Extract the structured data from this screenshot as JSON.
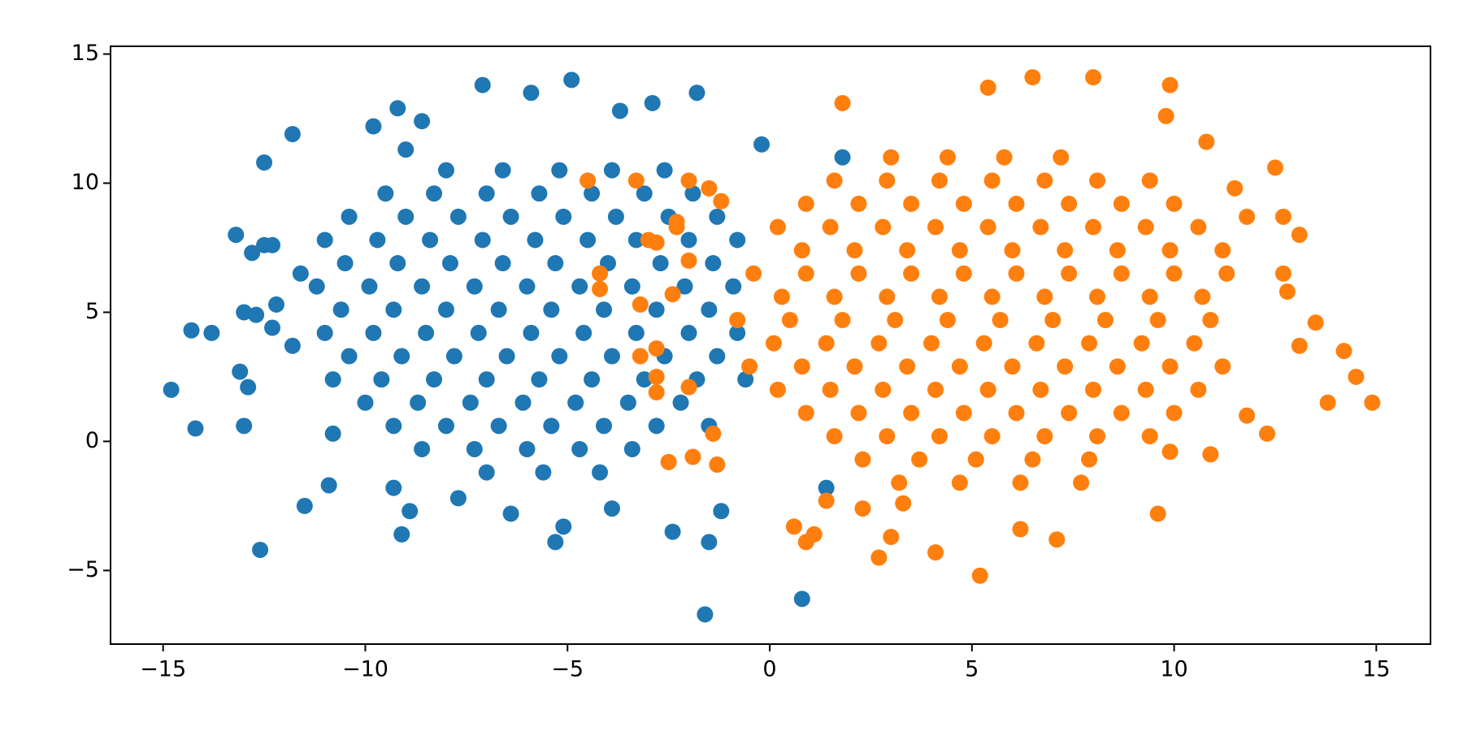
{
  "chart_data": {
    "type": "scatter",
    "xlim": [
      -16.3,
      16.34
    ],
    "ylim": [
      -7.85,
      15.3
    ],
    "xticks": [
      {
        "value": -15,
        "label": "−15"
      },
      {
        "value": -10,
        "label": "−10"
      },
      {
        "value": -5,
        "label": "−5"
      },
      0,
      5,
      10,
      15
    ],
    "yticks": [
      {
        "value": -5,
        "label": "−5"
      },
      0,
      5,
      10,
      15
    ],
    "series": [
      {
        "color": "#1f77b4",
        "x": [
          -14.8,
          -14.2,
          -14.3,
          -13.8,
          -13.2,
          -13.0,
          -12.7,
          -12.8,
          -12.5,
          -12.3,
          -13.1,
          -12.9,
          -13.0,
          -12.6,
          -11.5,
          -10.9,
          -12.5,
          -11.8,
          -12.2,
          -12.3,
          -11.8,
          -11.6,
          -10.8,
          -9.8,
          -9.2,
          -9.0,
          -8.6,
          -7.1,
          -5.9,
          -4.9,
          -3.7,
          -2.9,
          -1.8,
          -9.3,
          -9.1,
          -8.9,
          -7.7,
          -6.4,
          -5.3,
          -5.1,
          -3.9,
          -2.4,
          -1.5,
          -1.2,
          -1.6,
          0.8,
          1.4,
          -0.2,
          1.8,
          -8.0,
          -6.6,
          -5.2,
          -3.9,
          -2.6,
          -9.5,
          -8.3,
          -7.0,
          -5.7,
          -4.4,
          -3.1,
          -1.9,
          -10.4,
          -9.0,
          -7.7,
          -6.4,
          -5.1,
          -3.8,
          -2.5,
          -1.3,
          -11.0,
          -9.7,
          -8.4,
          -7.1,
          -5.8,
          -4.5,
          -3.3,
          -2.0,
          -0.8,
          -10.5,
          -9.2,
          -7.9,
          -6.6,
          -5.3,
          -4.0,
          -2.7,
          -1.4,
          -11.2,
          -9.9,
          -8.6,
          -7.3,
          -6.0,
          -4.7,
          -3.4,
          -2.1,
          -0.9,
          -10.6,
          -9.3,
          -8.0,
          -6.7,
          -5.4,
          -4.1,
          -2.8,
          -1.5,
          -11.0,
          -9.8,
          -8.5,
          -7.2,
          -5.9,
          -4.6,
          -3.3,
          -2.0,
          -0.8,
          -10.4,
          -9.1,
          -7.8,
          -6.5,
          -5.2,
          -3.9,
          -2.6,
          -1.3,
          -10.8,
          -9.6,
          -8.3,
          -7.0,
          -5.7,
          -4.4,
          -3.1,
          -1.8,
          -0.6,
          -10.0,
          -8.7,
          -7.4,
          -6.1,
          -4.8,
          -3.5,
          -2.2,
          -9.3,
          -8.0,
          -6.7,
          -5.4,
          -4.1,
          -2.8,
          -1.5,
          -8.6,
          -7.3,
          -6.0,
          -4.7,
          -3.4,
          -7.0,
          -5.6,
          -4.2
        ],
        "values": [
          2.0,
          0.5,
          4.3,
          4.2,
          8.0,
          5.0,
          4.9,
          7.3,
          7.6,
          7.6,
          2.7,
          2.1,
          0.6,
          -4.2,
          -2.5,
          -1.7,
          10.8,
          11.9,
          5.3,
          4.4,
          3.7,
          6.5,
          0.3,
          12.2,
          12.9,
          11.3,
          12.4,
          13.8,
          13.5,
          14.0,
          12.8,
          13.1,
          13.5,
          -1.8,
          -3.6,
          -2.7,
          -2.2,
          -2.8,
          -3.9,
          -3.3,
          -2.6,
          -3.5,
          -3.9,
          -2.7,
          -6.7,
          -6.1,
          -1.8,
          11.5,
          11.0,
          10.5,
          10.5,
          10.5,
          10.5,
          10.5,
          9.6,
          9.6,
          9.6,
          9.6,
          9.6,
          9.6,
          9.6,
          8.7,
          8.7,
          8.7,
          8.7,
          8.7,
          8.7,
          8.7,
          8.7,
          7.8,
          7.8,
          7.8,
          7.8,
          7.8,
          7.8,
          7.8,
          7.8,
          7.8,
          6.9,
          6.9,
          6.9,
          6.9,
          6.9,
          6.9,
          6.9,
          6.9,
          6.0,
          6.0,
          6.0,
          6.0,
          6.0,
          6.0,
          6.0,
          6.0,
          6.0,
          5.1,
          5.1,
          5.1,
          5.1,
          5.1,
          5.1,
          5.1,
          5.1,
          4.2,
          4.2,
          4.2,
          4.2,
          4.2,
          4.2,
          4.2,
          4.2,
          4.2,
          3.3,
          3.3,
          3.3,
          3.3,
          3.3,
          3.3,
          3.3,
          3.3,
          2.4,
          2.4,
          2.4,
          2.4,
          2.4,
          2.4,
          2.4,
          2.4,
          2.4,
          1.5,
          1.5,
          1.5,
          1.5,
          1.5,
          1.5,
          1.5,
          0.6,
          0.6,
          0.6,
          0.6,
          0.6,
          0.6,
          0.6,
          -0.3,
          -0.3,
          -0.3,
          -0.3,
          -0.3,
          -1.2,
          -1.2,
          -1.2
        ]
      },
      {
        "color": "#ff7f0e",
        "x": [
          14.9,
          14.5,
          14.2,
          13.8,
          13.5,
          13.1,
          12.8,
          12.7,
          12.5,
          13.1,
          12.7,
          11.8,
          11.5,
          12.3,
          11.8,
          9.6,
          9.9,
          10.9,
          9.9,
          9.8,
          10.8,
          8.0,
          6.5,
          5.4,
          1.8,
          5.2,
          4.1,
          2.7,
          3.0,
          0.9,
          1.1,
          0.6,
          7.1,
          6.2,
          2.3,
          3.3,
          1.4,
          -4.5,
          -3.3,
          -4.2,
          -4.2,
          -3.2,
          -3.0,
          -2.8,
          -2.8,
          -2.8,
          -2.8,
          -2.5,
          -2.0,
          -1.9,
          -2.0,
          -1.5,
          -2.3,
          -2.3,
          -2.0,
          -3.2,
          -2.4,
          -1.2,
          -1.4,
          -1.3,
          3.0,
          4.4,
          5.8,
          7.2,
          1.6,
          2.9,
          4.2,
          5.5,
          6.8,
          8.1,
          9.4,
          0.9,
          2.2,
          3.5,
          4.8,
          6.1,
          7.4,
          8.7,
          10.0,
          0.2,
          1.5,
          2.8,
          4.1,
          5.4,
          6.7,
          8.0,
          9.3,
          10.6,
          0.8,
          2.1,
          3.4,
          4.7,
          6.0,
          7.3,
          8.6,
          9.9,
          11.2,
          -0.4,
          0.9,
          2.2,
          3.5,
          4.8,
          6.1,
          7.4,
          8.7,
          10.0,
          11.3,
          0.3,
          1.6,
          2.9,
          4.2,
          5.5,
          6.8,
          8.1,
          9.4,
          10.7,
          -0.8,
          0.5,
          1.8,
          3.1,
          4.4,
          5.7,
          7.0,
          8.3,
          9.6,
          10.9,
          0.1,
          1.4,
          2.7,
          4.0,
          5.3,
          6.6,
          7.9,
          9.2,
          10.5,
          -0.5,
          0.8,
          2.1,
          3.4,
          4.7,
          6.0,
          7.3,
          8.6,
          9.9,
          11.2,
          0.2,
          1.5,
          2.8,
          4.1,
          5.4,
          6.7,
          8.0,
          9.3,
          10.6,
          0.9,
          2.2,
          3.5,
          4.8,
          6.1,
          7.4,
          8.7,
          10.0,
          1.6,
          2.9,
          4.2,
          5.5,
          6.8,
          8.1,
          9.4,
          2.3,
          3.7,
          5.1,
          6.5,
          7.9,
          3.2,
          4.7,
          6.2,
          7.7
        ],
        "values": [
          1.5,
          2.5,
          3.5,
          1.5,
          4.6,
          3.7,
          5.8,
          6.5,
          10.6,
          8.0,
          8.7,
          8.7,
          9.8,
          0.3,
          1.0,
          -2.8,
          -0.4,
          -0.5,
          13.8,
          12.6,
          11.6,
          14.1,
          14.1,
          13.7,
          13.1,
          -5.2,
          -4.3,
          -4.5,
          -3.7,
          -3.9,
          -3.6,
          -3.3,
          -3.8,
          -3.4,
          -2.6,
          -2.4,
          -2.3,
          10.1,
          10.1,
          6.5,
          5.9,
          5.3,
          7.8,
          7.7,
          3.6,
          1.9,
          2.5,
          -0.8,
          2.1,
          -0.6,
          10.1,
          9.8,
          8.5,
          8.3,
          7.0,
          3.3,
          5.7,
          9.3,
          0.3,
          -0.9,
          11.0,
          11.0,
          11.0,
          11.0,
          10.1,
          10.1,
          10.1,
          10.1,
          10.1,
          10.1,
          10.1,
          9.2,
          9.2,
          9.2,
          9.2,
          9.2,
          9.2,
          9.2,
          9.2,
          8.3,
          8.3,
          8.3,
          8.3,
          8.3,
          8.3,
          8.3,
          8.3,
          8.3,
          7.4,
          7.4,
          7.4,
          7.4,
          7.4,
          7.4,
          7.4,
          7.4,
          7.4,
          6.5,
          6.5,
          6.5,
          6.5,
          6.5,
          6.5,
          6.5,
          6.5,
          6.5,
          6.5,
          5.6,
          5.6,
          5.6,
          5.6,
          5.6,
          5.6,
          5.6,
          5.6,
          5.6,
          4.7,
          4.7,
          4.7,
          4.7,
          4.7,
          4.7,
          4.7,
          4.7,
          4.7,
          4.7,
          3.8,
          3.8,
          3.8,
          3.8,
          3.8,
          3.8,
          3.8,
          3.8,
          3.8,
          2.9,
          2.9,
          2.9,
          2.9,
          2.9,
          2.9,
          2.9,
          2.9,
          2.9,
          2.9,
          2.0,
          2.0,
          2.0,
          2.0,
          2.0,
          2.0,
          2.0,
          2.0,
          2.0,
          1.1,
          1.1,
          1.1,
          1.1,
          1.1,
          1.1,
          1.1,
          1.1,
          0.2,
          0.2,
          0.2,
          0.2,
          0.2,
          0.2,
          0.2,
          -0.7,
          -0.7,
          -0.7,
          -0.7,
          -0.7,
          -1.6,
          -1.6,
          -1.6,
          -1.6
        ]
      }
    ]
  }
}
